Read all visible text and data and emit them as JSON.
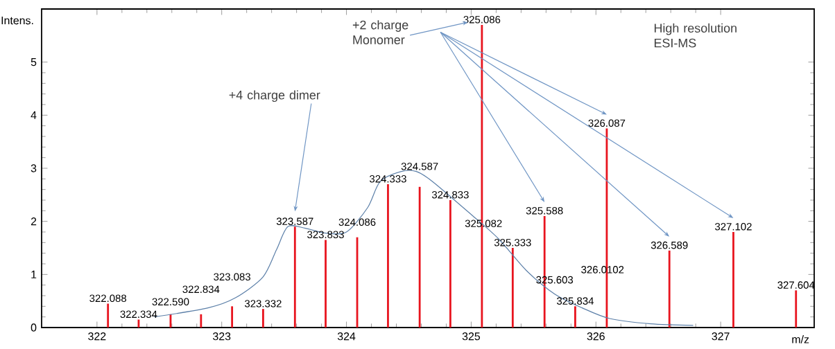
{
  "chart_data": {
    "type": "bar",
    "xlabel": "m/z",
    "ylabel": "Intens.",
    "xlim": [
      321.556,
      327.75
    ],
    "ylim": [
      0,
      6
    ],
    "xticks": [
      322,
      323,
      324,
      325,
      326,
      327
    ],
    "yticks": [
      0,
      1,
      2,
      3,
      4,
      5
    ],
    "grid": false,
    "series": [
      {
        "color": "#e8141e",
        "x": [
          322.088,
          322.334,
          322.59,
          322.834,
          323.083,
          323.332,
          323.587,
          323.833,
          324.086,
          324.333,
          324.587,
          324.833,
          325.086,
          325.333,
          325.588,
          325.834,
          326.087,
          326.589,
          327.102,
          327.604
        ],
        "values": [
          0.45,
          0.15,
          0.25,
          0.25,
          0.4,
          0.35,
          1.9,
          1.65,
          1.7,
          2.7,
          2.65,
          2.4,
          5.7,
          1.5,
          2.1,
          0.4,
          3.75,
          1.45,
          1.8,
          0.7
        ]
      },
      {
        "type": "line",
        "color": "#5b7fa8",
        "x": [
          322.46,
          322.89,
          323.11,
          323.33,
          323.44,
          323.53,
          323.67,
          323.83,
          324.0,
          324.17,
          324.27,
          324.44,
          324.56,
          324.69,
          325.0,
          325.22,
          325.44,
          325.67,
          325.89,
          326.11,
          326.44,
          326.78
        ],
        "values": [
          0.2,
          0.37,
          0.56,
          0.95,
          1.47,
          1.9,
          1.87,
          1.78,
          1.8,
          2.26,
          2.75,
          2.94,
          2.94,
          2.75,
          2.13,
          1.67,
          1.08,
          0.63,
          0.37,
          0.17,
          0.07,
          0.04
        ]
      }
    ],
    "annotations": [
      {
        "text": "322.088",
        "x": 322.088,
        "y": 0.45
      },
      {
        "text": "322.334",
        "x": 322.334,
        "y": 0.15
      },
      {
        "text": "322.590",
        "x": 322.59,
        "y": 0.25
      },
      {
        "text": "322.834",
        "x": 322.834,
        "y": 0.25
      },
      {
        "text": "323.083",
        "x": 323.083,
        "y": 0.4
      },
      {
        "text": "323.332",
        "x": 323.332,
        "y": 0.35
      },
      {
        "text": "323.587",
        "x": 323.587,
        "y": 1.9
      },
      {
        "text": "323.833",
        "x": 323.833,
        "y": 1.65
      },
      {
        "text": "324.086",
        "x": 324.086,
        "y": 1.7
      },
      {
        "text": "324.333",
        "x": 324.333,
        "y": 2.7
      },
      {
        "text": "324.587",
        "x": 324.587,
        "y": 2.65
      },
      {
        "text": "324.833",
        "x": 324.833,
        "y": 2.4
      },
      {
        "text": "325.086",
        "x": 325.086,
        "y": 5.7
      },
      {
        "text": "325.333",
        "x": 325.333,
        "y": 1.5
      },
      {
        "text": "325.588",
        "x": 325.588,
        "y": 2.1
      },
      {
        "text": "325.834",
        "x": 325.834,
        "y": 0.4
      },
      {
        "text": "326.087",
        "x": 326.087,
        "y": 3.75
      },
      {
        "text": "326.589",
        "x": 326.589,
        "y": 1.45
      },
      {
        "text": "327.102",
        "x": 327.102,
        "y": 1.8
      },
      {
        "text": "327.604",
        "x": 327.604,
        "y": 0.7
      },
      "325.082",
      "325.603",
      "326.0102",
      "+4 charge dimer",
      "+2 charge Monomer",
      "High resolution ESI-MS"
    ]
  }
}
